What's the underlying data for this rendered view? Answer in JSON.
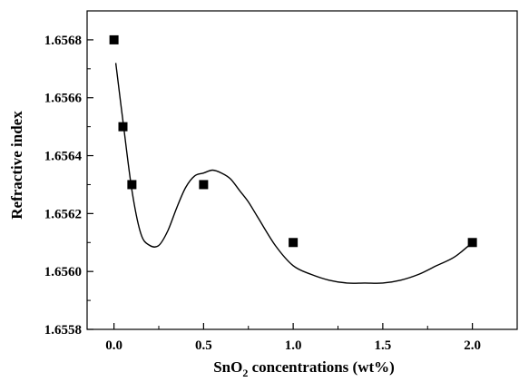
{
  "chart_data": {
    "type": "scatter",
    "title": "",
    "xlabel": {
      "main": "SnO",
      "subscript": "2",
      "rest": " concentrations (wt%)"
    },
    "ylabel": "Refractive index",
    "xlim": [
      -0.15,
      2.25
    ],
    "ylim": [
      1.6558,
      1.6569
    ],
    "x_ticks": [
      {
        "value": 0.0,
        "label": "0.0"
      },
      {
        "value": 0.5,
        "label": "0.5"
      },
      {
        "value": 1.0,
        "label": "1.0"
      },
      {
        "value": 1.5,
        "label": "1.5"
      },
      {
        "value": 2.0,
        "label": "2.0"
      }
    ],
    "y_ticks": [
      {
        "value": 1.6558,
        "label": "1.6558"
      },
      {
        "value": 1.656,
        "label": "1.6560"
      },
      {
        "value": 1.6562,
        "label": "1.6562"
      },
      {
        "value": 1.6564,
        "label": "1.6564"
      },
      {
        "value": 1.6566,
        "label": "1.6566"
      },
      {
        "value": 1.6568,
        "label": "1.6568"
      }
    ],
    "series": [
      {
        "marker": "square",
        "color": "#000000",
        "x": [
          0.0,
          0.05,
          0.1,
          0.5,
          1.0,
          2.0
        ],
        "y": [
          1.6568,
          1.6565,
          1.6563,
          1.6563,
          1.6561,
          1.6561
        ]
      }
    ],
    "fit_curve": {
      "color": "#000000",
      "x": [
        0.01,
        0.05,
        0.1,
        0.15,
        0.2,
        0.25,
        0.3,
        0.35,
        0.4,
        0.45,
        0.5,
        0.55,
        0.6,
        0.65,
        0.7,
        0.75,
        0.8,
        0.9,
        1.0,
        1.1,
        1.2,
        1.3,
        1.4,
        1.5,
        1.6,
        1.7,
        1.8,
        1.9,
        2.0
      ],
      "y": [
        1.65672,
        1.65652,
        1.65628,
        1.65613,
        1.65609,
        1.65609,
        1.65614,
        1.65622,
        1.65629,
        1.65633,
        1.65634,
        1.65635,
        1.65634,
        1.65632,
        1.65628,
        1.65624,
        1.65619,
        1.65609,
        1.65602,
        1.65599,
        1.65597,
        1.65596,
        1.65596,
        1.65596,
        1.65597,
        1.65599,
        1.65602,
        1.65605,
        1.6561
      ]
    }
  }
}
